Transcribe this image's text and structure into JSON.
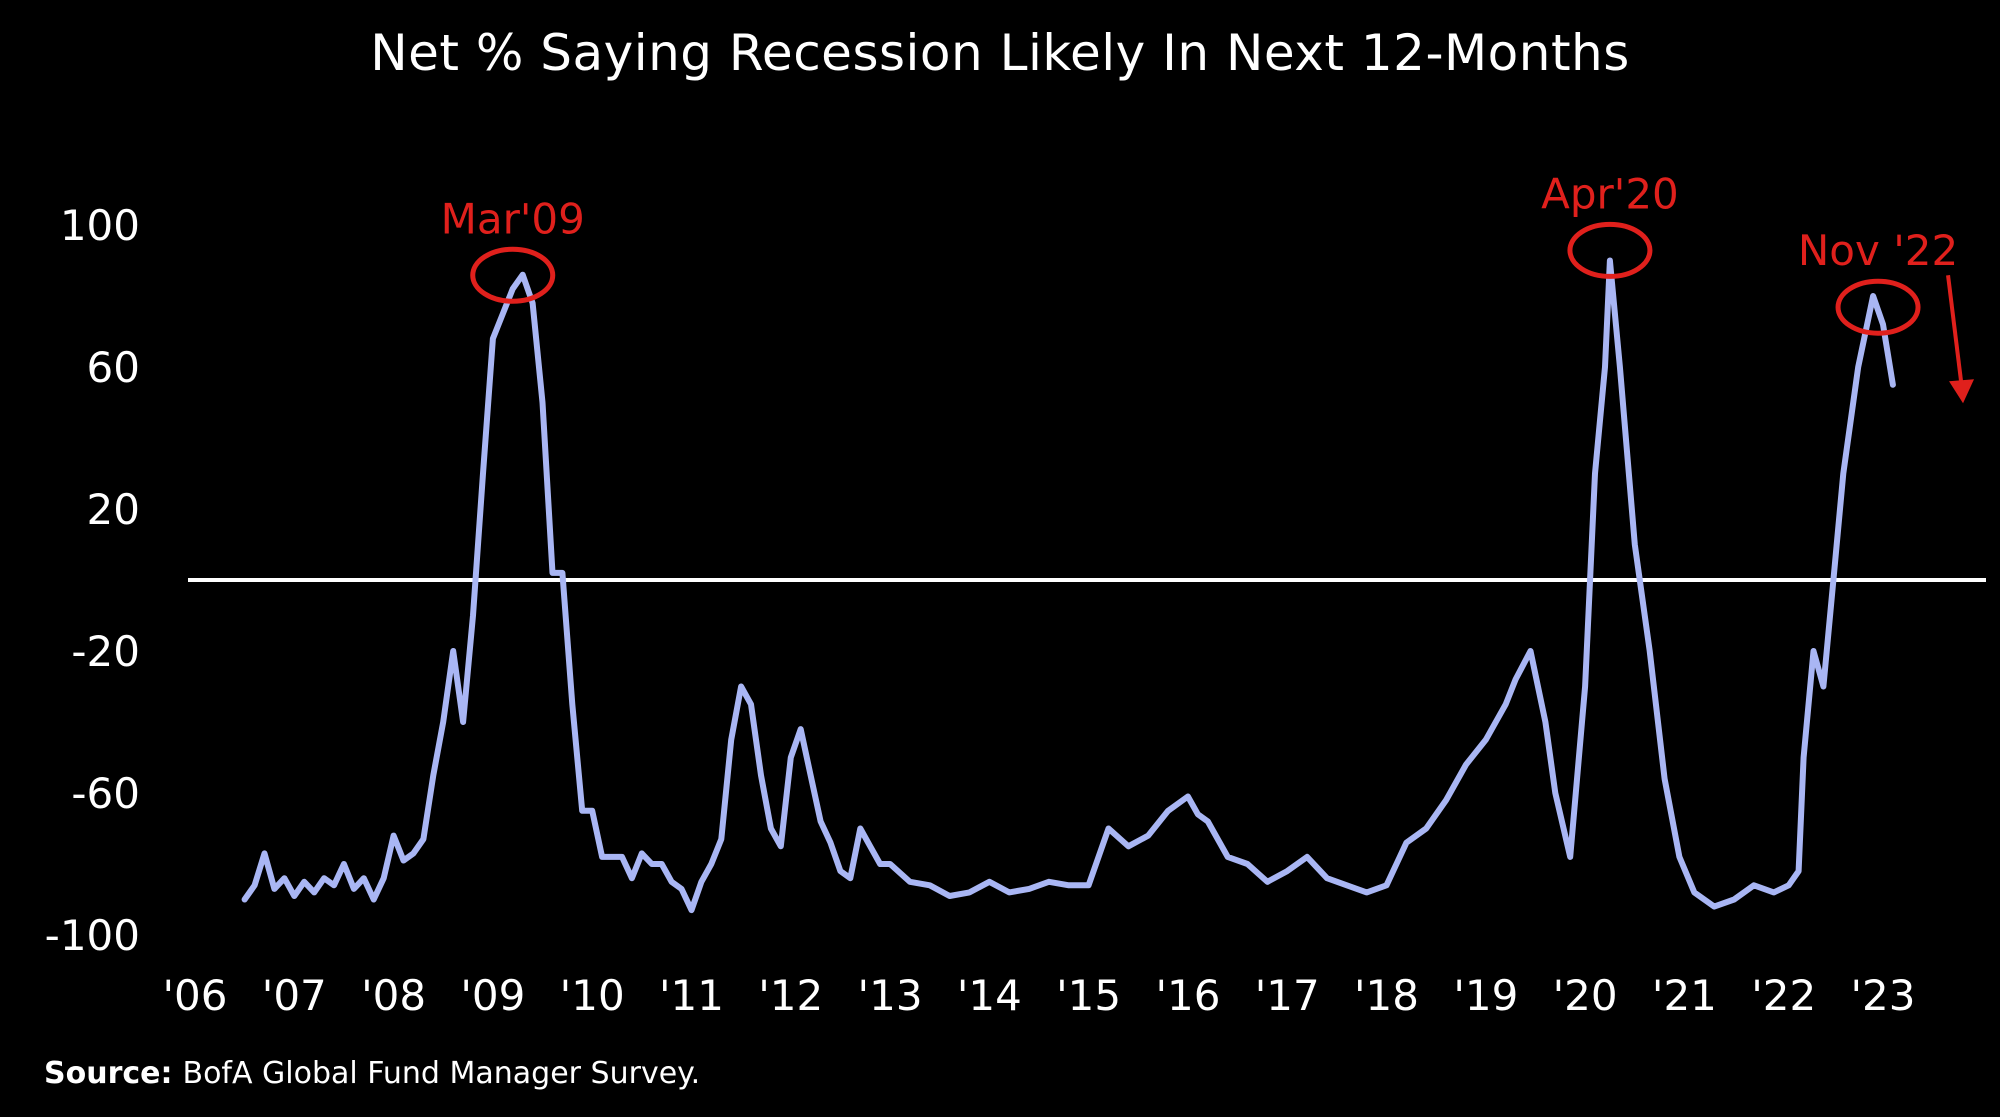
{
  "chart_data": {
    "type": "line",
    "title": "Net % Saying Recession Likely In Next 12-Months",
    "xlabel": "",
    "ylabel": "",
    "ylim": [
      -100,
      100
    ],
    "y_ticks": [
      100,
      60,
      20,
      -20,
      -60,
      -100
    ],
    "xlim": [
      2006,
      2024.1
    ],
    "x_ticks": [
      2006,
      2007,
      2008,
      2009,
      2010,
      2011,
      2012,
      2013,
      2014,
      2015,
      2016,
      2017,
      2018,
      2019,
      2020,
      2021,
      2022,
      2023
    ],
    "x_tick_labels": [
      "'06",
      "'07",
      "'08",
      "'09",
      "'10",
      "'11",
      "'12",
      "'13",
      "'14",
      "'15",
      "'16",
      "'17",
      "'18",
      "'19",
      "'20",
      "'21",
      "'22",
      "'23"
    ],
    "reference_line": 0,
    "series": [
      {
        "name": "Net % saying recession likely",
        "x": [
          2006.5,
          2006.6,
          2006.7,
          2006.8,
          2006.9,
          2007.0,
          2007.1,
          2007.2,
          2007.3,
          2007.4,
          2007.5,
          2007.6,
          2007.7,
          2007.8,
          2007.9,
          2008.0,
          2008.1,
          2008.2,
          2008.3,
          2008.4,
          2008.5,
          2008.6,
          2008.7,
          2008.8,
          2008.9,
          2009.0,
          2009.1,
          2009.2,
          2009.3,
          2009.4,
          2009.5,
          2009.6,
          2009.7,
          2009.8,
          2009.9,
          2010.0,
          2010.1,
          2010.2,
          2010.3,
          2010.4,
          2010.5,
          2010.6,
          2010.7,
          2010.8,
          2010.9,
          2011.0,
          2011.1,
          2011.2,
          2011.3,
          2011.4,
          2011.5,
          2011.6,
          2011.7,
          2011.8,
          2011.9,
          2012.0,
          2012.1,
          2012.2,
          2012.3,
          2012.4,
          2012.5,
          2012.6,
          2012.7,
          2012.8,
          2012.9,
          2013.0,
          2013.2,
          2013.4,
          2013.6,
          2013.8,
          2014.0,
          2014.2,
          2014.4,
          2014.6,
          2014.8,
          2015.0,
          2015.2,
          2015.4,
          2015.6,
          2015.8,
          2016.0,
          2016.1,
          2016.2,
          2016.4,
          2016.6,
          2016.8,
          2017.0,
          2017.2,
          2017.4,
          2017.6,
          2017.8,
          2018.0,
          2018.2,
          2018.4,
          2018.6,
          2018.8,
          2019.0,
          2019.2,
          2019.3,
          2019.45,
          2019.6,
          2019.7,
          2019.85,
          2020.0,
          2020.1,
          2020.2,
          2020.25,
          2020.35,
          2020.5,
          2020.65,
          2020.8,
          2020.95,
          2021.1,
          2021.3,
          2021.5,
          2021.7,
          2021.9,
          2022.05,
          2022.15,
          2022.2,
          2022.3,
          2022.4,
          2022.5,
          2022.6,
          2022.75,
          2022.9,
          2023.0,
          2023.1
        ],
        "values": [
          -90,
          -86,
          -77,
          -87,
          -84,
          -89,
          -85,
          -88,
          -84,
          -86,
          -80,
          -87,
          -84,
          -90,
          -84,
          -72,
          -79,
          -77,
          -73,
          -55,
          -40,
          -20,
          -40,
          -10,
          30,
          68,
          75,
          82,
          86,
          78,
          50,
          2,
          2,
          -35,
          -65,
          -65,
          -78,
          -78,
          -78,
          -84,
          -77,
          -80,
          -80,
          -85,
          -87,
          -93,
          -85,
          -80,
          -73,
          -45,
          -30,
          -35,
          -55,
          -70,
          -75,
          -50,
          -42,
          -55,
          -68,
          -74,
          -82,
          -84,
          -70,
          -75,
          -80,
          -80,
          -85,
          -86,
          -89,
          -88,
          -85,
          -88,
          -87,
          -85,
          -86,
          -86,
          -70,
          -75,
          -72,
          -65,
          -61,
          -66,
          -68,
          -78,
          -80,
          -85,
          -82,
          -78,
          -84,
          -86,
          -88,
          -86,
          -74,
          -70,
          -62,
          -52,
          -45,
          -35,
          -28,
          -20,
          -40,
          -60,
          -78,
          -30,
          30,
          60,
          90,
          60,
          10,
          -20,
          -56,
          -78,
          -88,
          -92,
          -90,
          -86,
          -88,
          -86,
          -82,
          -50,
          -20,
          -30,
          0,
          30,
          60,
          80,
          72,
          55
        ]
      }
    ],
    "annotations": [
      {
        "label": "Mar'09",
        "x": 2009.2,
        "y": 85
      },
      {
        "label": "Apr'20",
        "x": 2020.25,
        "y": 92
      },
      {
        "label": "Nov '22",
        "x": 2022.95,
        "y": 76
      }
    ]
  },
  "colors": {
    "background": "#000000",
    "line": "#a9b6f4",
    "zero_line": "#ffffff",
    "annotation": "#e0201c",
    "text": "#ffffff"
  },
  "source": {
    "label": "Source:",
    "text": "BofA Global Fund Manager Survey."
  }
}
